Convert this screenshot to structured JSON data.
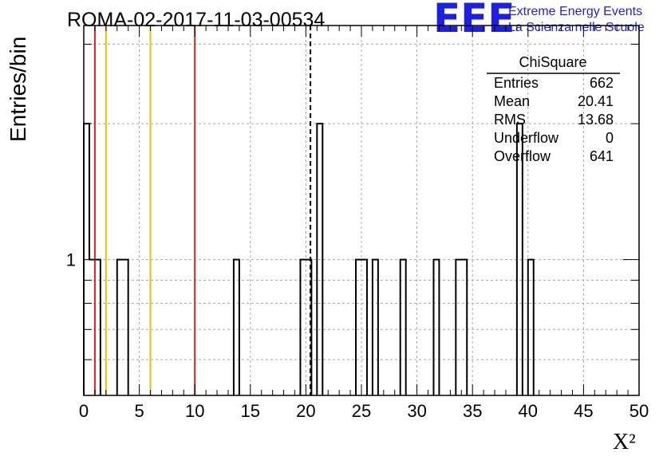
{
  "header": {
    "title": "ROMA-02-2017-11-03-00534",
    "logo_mark": "EEE",
    "logo_line1": "Extreme Energy Events",
    "logo_line2": "La Scienza nelle Scuole"
  },
  "stats": {
    "name": "ChiSquare",
    "rows": [
      {
        "label": "Entries",
        "value": "662"
      },
      {
        "label": "Mean",
        "value": "20.41"
      },
      {
        "label": "RMS",
        "value": "13.68"
      },
      {
        "label": "Underflow",
        "value": "0"
      },
      {
        "label": "Overflow",
        "value": "641"
      }
    ]
  },
  "chart_data": {
    "type": "bar",
    "title": "ROMA-02-2017-11-03-00534",
    "xlabel": "X²",
    "ylabel": "Entries/bin",
    "xlim": [
      0,
      50
    ],
    "ylog": true,
    "ylim": [
      0.5,
      3.3
    ],
    "x_ticks": [
      "0",
      "5",
      "10",
      "15",
      "20",
      "25",
      "30",
      "35",
      "40",
      "45",
      "50"
    ],
    "y_ticks": [
      "1"
    ],
    "grid": true,
    "bin_width": 0.5,
    "bins": [
      {
        "x0": 0.0,
        "count": 2
      },
      {
        "x0": 0.5,
        "count": 1
      },
      {
        "x0": 1.0,
        "count": 1
      },
      {
        "x0": 3.0,
        "count": 1
      },
      {
        "x0": 3.5,
        "count": 1
      },
      {
        "x0": 13.5,
        "count": 1
      },
      {
        "x0": 19.5,
        "count": 1
      },
      {
        "x0": 20.0,
        "count": 1
      },
      {
        "x0": 21.0,
        "count": 2
      },
      {
        "x0": 24.5,
        "count": 1
      },
      {
        "x0": 25.0,
        "count": 1
      },
      {
        "x0": 26.0,
        "count": 1
      },
      {
        "x0": 28.5,
        "count": 1
      },
      {
        "x0": 31.5,
        "count": 1
      },
      {
        "x0": 33.5,
        "count": 1
      },
      {
        "x0": 34.0,
        "count": 1
      },
      {
        "x0": 39.0,
        "count": 2
      },
      {
        "x0": 40.0,
        "count": 1
      }
    ],
    "vertical_lines": [
      {
        "x": 1.0,
        "color": "#e02020",
        "style": "solid"
      },
      {
        "x": 2.0,
        "color": "#f0c000",
        "style": "solid"
      },
      {
        "x": 6.0,
        "color": "#f0c000",
        "style": "solid"
      },
      {
        "x": 10.0,
        "color": "#e02020",
        "style": "solid"
      },
      {
        "x": 20.41,
        "color": "#000000",
        "style": "dashed"
      }
    ]
  }
}
